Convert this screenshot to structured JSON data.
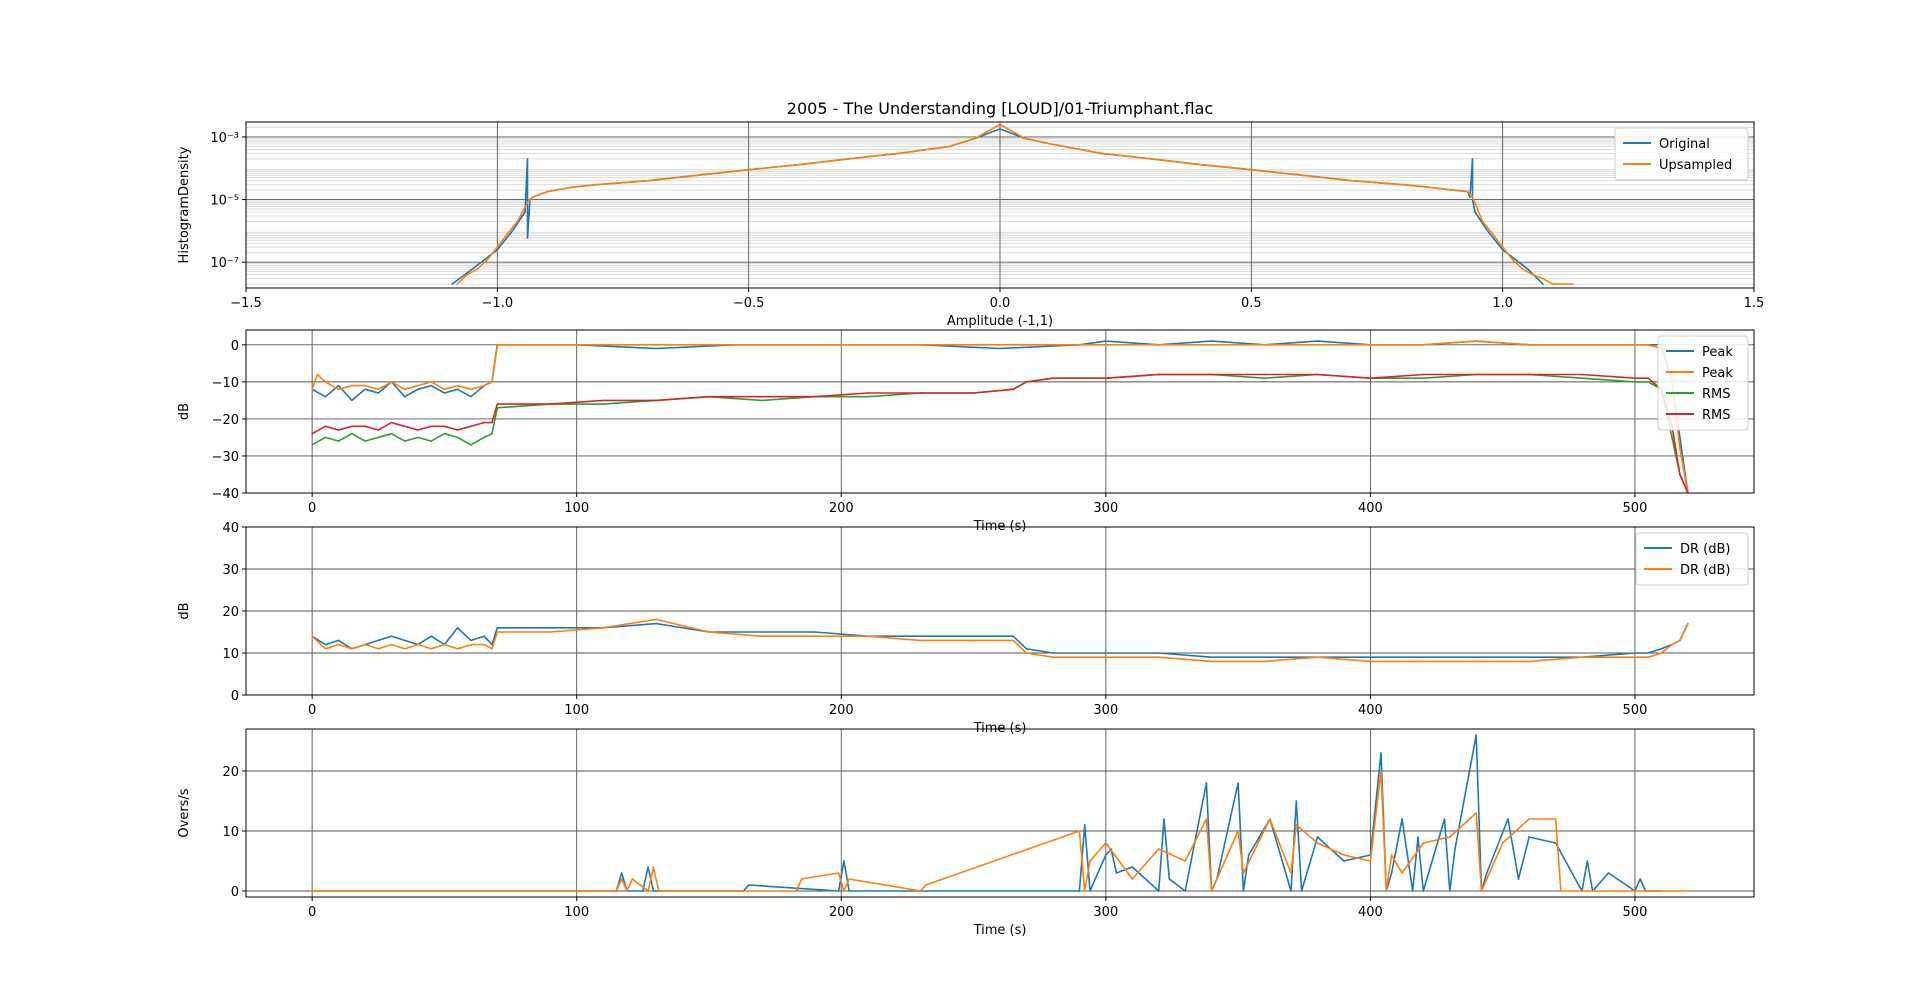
{
  "chart_data": [
    {
      "type": "line",
      "title": "2005 - The Understanding [LOUD]/01-Triumphant.flac",
      "xlabel": "Amplitude (-1,1)",
      "ylabel": "HistogramDensity",
      "xlim": [
        -1.5,
        1.5
      ],
      "yscale": "log",
      "ylim": [
        1.5e-08,
        0.003
      ],
      "xticks": [
        "−1.5",
        "−1.0",
        "−0.5",
        "0.0",
        "0.5",
        "1.0",
        "1.5"
      ],
      "xtick_values": [
        -1.5,
        -1.0,
        -0.5,
        0.0,
        0.5,
        1.0,
        1.5
      ],
      "yticks": [
        "10⁻³",
        "10⁻⁵",
        "10⁻⁷"
      ],
      "ytick_values": [
        0.001,
        1e-05,
        1e-07
      ],
      "grid": true,
      "legend_position": "top-right",
      "series": [
        {
          "name": "Original",
          "color": "#1f77b4",
          "x": [
            -1.09,
            -1.05,
            -1.0,
            -0.97,
            -0.945,
            -0.94,
            -0.94,
            -0.935,
            -0.93,
            -0.9,
            -0.85,
            -0.8,
            -0.7,
            -0.6,
            -0.5,
            -0.4,
            -0.3,
            -0.2,
            -0.1,
            -0.05,
            0.0,
            0.05,
            0.1,
            0.2,
            0.3,
            0.4,
            0.5,
            0.6,
            0.7,
            0.8,
            0.85,
            0.9,
            0.93,
            0.935,
            0.94,
            0.94,
            0.945,
            0.97,
            1.0,
            1.05,
            1.08
          ],
          "y": [
            2e-08,
            6e-08,
            2.5e-07,
            1e-06,
            4e-06,
            0.0002,
            6e-07,
            1e-05,
            1.2e-05,
            1.8e-05,
            2.5e-05,
            3e-05,
            4e-05,
            6e-05,
            9e-05,
            0.00013,
            0.0002,
            0.0003,
            0.0005,
            0.0009,
            0.0018,
            0.0009,
            0.0006,
            0.0003,
            0.0002,
            0.00013,
            9e-05,
            6e-05,
            4e-05,
            3e-05,
            2.5e-05,
            2e-05,
            1.8e-05,
            1.2e-05,
            0.0002,
            1e-05,
            4e-06,
            1e-06,
            2.5e-07,
            6e-08,
            2e-08
          ]
        },
        {
          "name": "Upsampled",
          "color": "#ff7f0e",
          "x": [
            -1.08,
            -1.06,
            -1.04,
            -1.02,
            -1.0,
            -0.98,
            -0.96,
            -0.94,
            -0.93,
            -0.9,
            -0.85,
            -0.8,
            -0.7,
            -0.6,
            -0.5,
            -0.4,
            -0.3,
            -0.2,
            -0.1,
            -0.05,
            0.0,
            0.05,
            0.1,
            0.2,
            0.3,
            0.4,
            0.5,
            0.6,
            0.7,
            0.8,
            0.85,
            0.9,
            0.93,
            0.94,
            0.96,
            0.98,
            1.0,
            1.02,
            1.04,
            1.06,
            1.08,
            1.1,
            1.12,
            1.14
          ],
          "y": [
            2e-08,
            4e-08,
            6e-08,
            1.2e-07,
            3e-07,
            8e-07,
            2e-06,
            8e-06,
            1.2e-05,
            1.8e-05,
            2.5e-05,
            3e-05,
            4e-05,
            6e-05,
            9e-05,
            0.00013,
            0.0002,
            0.0003,
            0.0005,
            0.0009,
            0.0025,
            0.0009,
            0.0006,
            0.0003,
            0.0002,
            0.00013,
            9e-05,
            6e-05,
            4e-05,
            3e-05,
            2.5e-05,
            2e-05,
            1.8e-05,
            1.2e-05,
            2e-06,
            8e-07,
            3e-07,
            1.2e-07,
            6e-08,
            4e-08,
            3e-08,
            2e-08,
            2e-08,
            2e-08
          ]
        }
      ]
    },
    {
      "type": "line",
      "title": "",
      "xlabel": "Time (s)",
      "ylabel": "dB",
      "xlim": [
        -25,
        545
      ],
      "ylim": [
        -40,
        4
      ],
      "xticks": [
        "0",
        "100",
        "200",
        "300",
        "400",
        "500"
      ],
      "xtick_values": [
        0,
        100,
        200,
        300,
        400,
        500
      ],
      "yticks": [
        "0",
        "−10",
        "−20",
        "−30",
        "−40"
      ],
      "ytick_values": [
        0,
        -10,
        -20,
        -30,
        -40
      ],
      "grid": true,
      "legend_position": "top-right",
      "series": [
        {
          "name": "Peak",
          "color": "#1f77b4",
          "x": [
            0,
            5,
            10,
            15,
            20,
            25,
            30,
            35,
            40,
            45,
            50,
            55,
            60,
            65,
            68,
            70,
            100,
            130,
            160,
            200,
            230,
            260,
            290,
            300,
            320,
            340,
            360,
            380,
            400,
            420,
            440,
            460,
            480,
            500,
            505,
            510,
            514,
            517,
            520
          ],
          "y": [
            -12,
            -14,
            -11,
            -15,
            -12,
            -13,
            -10,
            -14,
            -12,
            -11,
            -13,
            -12,
            -14,
            -11,
            -10,
            0,
            0,
            -1,
            0,
            0,
            0,
            -1,
            0,
            1,
            0,
            1,
            0,
            1,
            0,
            0,
            1,
            0,
            0,
            0,
            0,
            0,
            -10,
            -25,
            -40
          ]
        },
        {
          "name": "Peak",
          "color": "#ff7f0e",
          "x": [
            0,
            2,
            5,
            10,
            15,
            20,
            25,
            30,
            35,
            40,
            45,
            50,
            55,
            60,
            65,
            68,
            70,
            100,
            130,
            160,
            200,
            230,
            260,
            290,
            300,
            320,
            340,
            360,
            380,
            400,
            420,
            440,
            460,
            480,
            500,
            505,
            510,
            514,
            517,
            520
          ],
          "y": [
            -12,
            -8,
            -10,
            -12,
            -11,
            -11,
            -12,
            -10,
            -12,
            -11,
            -10,
            -12,
            -11,
            -12,
            -11,
            -10,
            0,
            0,
            0,
            0,
            0,
            0,
            0,
            0,
            0,
            0,
            0,
            0,
            0,
            0,
            0,
            1,
            0,
            0,
            0,
            0,
            -1,
            -10,
            -28,
            -40
          ]
        },
        {
          "name": "RMS",
          "color": "#2ca02c",
          "x": [
            0,
            5,
            10,
            15,
            20,
            25,
            30,
            35,
            40,
            45,
            50,
            55,
            60,
            65,
            68,
            70,
            90,
            110,
            130,
            150,
            170,
            190,
            210,
            230,
            250,
            265,
            270,
            280,
            300,
            320,
            340,
            360,
            380,
            400,
            420,
            440,
            460,
            480,
            500,
            505,
            510,
            514,
            517,
            520
          ],
          "y": [
            -27,
            -25,
            -26,
            -24,
            -26,
            -25,
            -24,
            -26,
            -25,
            -26,
            -24,
            -25,
            -27,
            -25,
            -24,
            -17,
            -16,
            -16,
            -15,
            -14,
            -15,
            -14,
            -14,
            -13,
            -13,
            -12,
            -10,
            -9,
            -9,
            -8,
            -8,
            -9,
            -8,
            -9,
            -9,
            -8,
            -8,
            -9,
            -10,
            -10,
            -12,
            -25,
            -35,
            -40
          ]
        },
        {
          "name": "RMS",
          "color": "#d62728",
          "x": [
            0,
            5,
            10,
            15,
            20,
            25,
            30,
            35,
            40,
            45,
            50,
            55,
            60,
            65,
            68,
            70,
            90,
            110,
            130,
            150,
            170,
            190,
            210,
            230,
            250,
            265,
            270,
            280,
            300,
            320,
            340,
            360,
            380,
            400,
            420,
            440,
            460,
            480,
            500,
            505,
            510,
            514,
            517,
            520
          ],
          "y": [
            -24,
            -22,
            -23,
            -22,
            -22,
            -23,
            -21,
            -22,
            -23,
            -22,
            -22,
            -23,
            -22,
            -21,
            -21,
            -16,
            -16,
            -15,
            -15,
            -14,
            -14,
            -14,
            -13,
            -13,
            -13,
            -12,
            -10,
            -9,
            -9,
            -8,
            -8,
            -8,
            -8,
            -9,
            -8,
            -8,
            -8,
            -8,
            -9,
            -9,
            -12,
            -22,
            -35,
            -40
          ]
        }
      ]
    },
    {
      "type": "line",
      "title": "",
      "xlabel": "Time (s)",
      "ylabel": "dB",
      "xlim": [
        -25,
        545
      ],
      "ylim": [
        0,
        40
      ],
      "xticks": [
        "0",
        "100",
        "200",
        "300",
        "400",
        "500"
      ],
      "xtick_values": [
        0,
        100,
        200,
        300,
        400,
        500
      ],
      "yticks": [
        "0",
        "10",
        "20",
        "30",
        "40"
      ],
      "ytick_values": [
        0,
        10,
        20,
        30,
        40
      ],
      "grid": true,
      "legend_position": "top-right",
      "series": [
        {
          "name": "DR (dB)",
          "color": "#1f77b4",
          "x": [
            0,
            5,
            10,
            15,
            20,
            25,
            30,
            35,
            40,
            45,
            50,
            55,
            60,
            65,
            68,
            70,
            90,
            110,
            130,
            150,
            170,
            190,
            210,
            230,
            250,
            265,
            270,
            280,
            300,
            320,
            340,
            360,
            380,
            400,
            420,
            440,
            460,
            480,
            500,
            505,
            510,
            514,
            517,
            520
          ],
          "y": [
            14,
            12,
            13,
            11,
            12,
            13,
            14,
            13,
            12,
            14,
            12,
            16,
            13,
            14,
            12,
            16,
            16,
            16,
            17,
            15,
            15,
            15,
            14,
            14,
            14,
            14,
            11,
            10,
            10,
            10,
            9,
            9,
            9,
            9,
            9,
            9,
            9,
            9,
            10,
            10,
            11,
            12,
            13,
            17
          ]
        },
        {
          "name": "DR (dB)",
          "color": "#ff7f0e",
          "x": [
            0,
            5,
            10,
            15,
            20,
            25,
            30,
            35,
            40,
            45,
            50,
            55,
            60,
            65,
            68,
            70,
            90,
            110,
            130,
            150,
            170,
            190,
            210,
            230,
            250,
            265,
            270,
            280,
            300,
            320,
            340,
            360,
            380,
            400,
            420,
            440,
            460,
            480,
            500,
            505,
            510,
            514,
            517,
            520
          ],
          "y": [
            14,
            11,
            12,
            11,
            12,
            11,
            12,
            11,
            12,
            11,
            12,
            11,
            12,
            12,
            11,
            15,
            15,
            16,
            18,
            15,
            14,
            14,
            14,
            13,
            13,
            13,
            10,
            9,
            9,
            9,
            8,
            8,
            9,
            8,
            8,
            8,
            8,
            9,
            9,
            9,
            10,
            12,
            13,
            17
          ]
        }
      ]
    },
    {
      "type": "line",
      "title": "",
      "xlabel": "Time (s)",
      "ylabel": "Overs/s",
      "xlim": [
        -25,
        545
      ],
      "ylim": [
        -1,
        27
      ],
      "xticks": [
        "0",
        "100",
        "200",
        "300",
        "400",
        "500"
      ],
      "xtick_values": [
        0,
        100,
        200,
        300,
        400,
        500
      ],
      "yticks": [
        "0",
        "10",
        "20"
      ],
      "ytick_values": [
        0,
        10,
        20
      ],
      "grid": true,
      "series": [
        {
          "name": "",
          "color": "#1f77b4",
          "x": [
            0,
            115,
            117,
            119,
            125,
            127,
            129,
            163,
            165,
            199,
            201,
            203,
            290,
            292,
            294,
            300,
            302,
            304,
            310,
            320,
            322,
            324,
            330,
            338,
            340,
            342,
            350,
            352,
            354,
            362,
            370,
            372,
            374,
            380,
            390,
            400,
            404,
            406,
            408,
            412,
            416,
            418,
            420,
            428,
            430,
            432,
            440,
            442,
            444,
            452,
            456,
            460,
            470,
            480,
            482,
            484,
            490,
            500,
            502,
            504,
            510
          ],
          "y": [
            0,
            0,
            3,
            0,
            0,
            4,
            0,
            0,
            1,
            0,
            5,
            0,
            0,
            11,
            0,
            6,
            7,
            3,
            4,
            0,
            12,
            2,
            0,
            18,
            0,
            2,
            18,
            0,
            6,
            12,
            0,
            15,
            0,
            9,
            5,
            6,
            23,
            0,
            3,
            12,
            0,
            9,
            0,
            12,
            0,
            7,
            26,
            0,
            3,
            12,
            2,
            9,
            8,
            0,
            5,
            0,
            3,
            0,
            2,
            0,
            0
          ]
        },
        {
          "name": "",
          "color": "#ff7f0e",
          "x": [
            0,
            115,
            117,
            119,
            121,
            127,
            129,
            131,
            183,
            185,
            199,
            201,
            203,
            230,
            232,
            290,
            292,
            294,
            300,
            310,
            320,
            330,
            338,
            340,
            350,
            352,
            362,
            370,
            372,
            380,
            390,
            400,
            404,
            406,
            408,
            412,
            420,
            430,
            440,
            442,
            450,
            460,
            470,
            472,
            480,
            490,
            500,
            510,
            520
          ],
          "y": [
            0,
            0,
            2,
            0,
            2,
            0,
            4,
            0,
            0,
            2,
            3,
            0,
            2,
            0,
            1,
            10,
            0,
            5,
            8,
            2,
            7,
            5,
            12,
            0,
            10,
            3,
            12,
            3,
            11,
            8,
            6,
            5,
            20,
            0,
            6,
            3,
            8,
            9,
            13,
            0,
            8,
            12,
            12,
            0,
            0,
            0,
            0,
            0,
            0
          ]
        }
      ]
    }
  ]
}
